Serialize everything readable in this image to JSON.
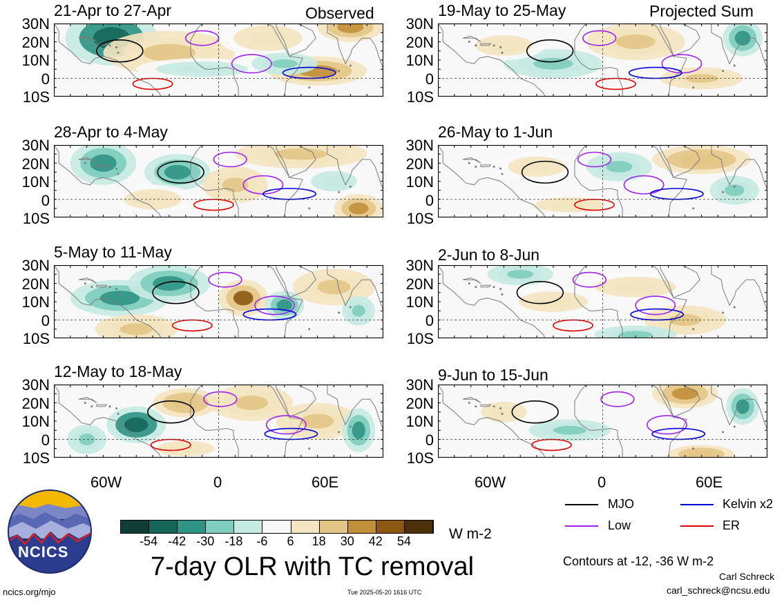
{
  "panels": [
    {
      "title": "21-Apr to 27-Apr",
      "corner": "Observed"
    },
    {
      "title": "28-Apr to 4-May",
      "corner": ""
    },
    {
      "title": "5-May to 11-May",
      "corner": ""
    },
    {
      "title": "12-May to 18-May",
      "corner": ""
    },
    {
      "title": "19-May to 25-May",
      "corner": "Projected Sum"
    },
    {
      "title": "26-May to 1-Jun",
      "corner": ""
    },
    {
      "title": "2-Jun to 8-Jun",
      "corner": ""
    },
    {
      "title": "9-Jun to 15-Jun",
      "corner": ""
    }
  ],
  "lat_labels": [
    "30N",
    "20N",
    "10N",
    "0",
    "10S"
  ],
  "lon_labels": [
    "60W",
    "0",
    "60E"
  ],
  "colorbar": {
    "ticks": [
      "-54",
      "-42",
      "-30",
      "-18",
      "-6",
      "6",
      "18",
      "30",
      "42",
      "54"
    ],
    "colors": [
      "#0e3e35",
      "#16675a",
      "#2f9484",
      "#7ecdbe",
      "#c5eae2",
      "#f8f8f8",
      "#f4e4c0",
      "#e3c586",
      "#c18f3a",
      "#8d5811",
      "#4e3008"
    ],
    "units": "W m-2"
  },
  "legend": {
    "items": [
      {
        "label": "MJO",
        "color": "#000000"
      },
      {
        "label": "Kelvin x2",
        "color": "#0000dd"
      },
      {
        "label": "Low",
        "color": "#a020f0"
      },
      {
        "label": "ER",
        "color": "#e00000"
      }
    ],
    "contours_note": "Contours at -12, -36 W m-2"
  },
  "main_title": "7-day OLR with TC removal",
  "logo_text": "NCICS",
  "footer": {
    "left": "ncics.org/mjo",
    "center": "Tue 2025-05-20 1616 UTC",
    "author": "Carl Schreck",
    "email": "carl_schreck@ncsu.edu"
  },
  "map_fields": [
    [
      {
        "lon": -65,
        "lat": 22,
        "v": -50,
        "rx": 28,
        "ry": 15
      },
      {
        "lon": -30,
        "lat": 14,
        "v": 20,
        "rx": 40,
        "ry": 12
      },
      {
        "lon": 30,
        "lat": 22,
        "v": 18,
        "rx": 30,
        "ry": 10
      },
      {
        "lon": 60,
        "lat": 4,
        "v": 42,
        "rx": 30,
        "ry": 8
      },
      {
        "lon": 80,
        "lat": 28,
        "v": 35,
        "rx": 20,
        "ry": 8
      },
      {
        "lon": -10,
        "lat": 5,
        "v": -10,
        "rx": 40,
        "ry": 6
      },
      {
        "lon": 40,
        "lat": 8,
        "v": -18,
        "rx": 20,
        "ry": 6
      }
    ],
    [
      {
        "lon": -70,
        "lat": 20,
        "v": -30,
        "rx": 20,
        "ry": 12
      },
      {
        "lon": -25,
        "lat": 15,
        "v": -30,
        "rx": 20,
        "ry": 10
      },
      {
        "lon": 10,
        "lat": 8,
        "v": 25,
        "rx": 20,
        "ry": 10
      },
      {
        "lon": 50,
        "lat": 25,
        "v": 20,
        "rx": 40,
        "ry": 8
      },
      {
        "lon": 85,
        "lat": -5,
        "v": 42,
        "rx": 15,
        "ry": 8
      },
      {
        "lon": -40,
        "lat": 0,
        "v": 15,
        "rx": 25,
        "ry": 8
      },
      {
        "lon": 70,
        "lat": 10,
        "v": -10,
        "rx": 20,
        "ry": 8
      }
    ],
    [
      {
        "lon": -60,
        "lat": 12,
        "v": -30,
        "rx": 30,
        "ry": 10
      },
      {
        "lon": -30,
        "lat": 20,
        "v": -30,
        "rx": 25,
        "ry": 10
      },
      {
        "lon": 15,
        "lat": 12,
        "v": 45,
        "rx": 15,
        "ry": 10
      },
      {
        "lon": 40,
        "lat": 8,
        "v": -40,
        "rx": 12,
        "ry": 8
      },
      {
        "lon": -50,
        "lat": -5,
        "v": 20,
        "rx": 25,
        "ry": 8
      },
      {
        "lon": 70,
        "lat": 18,
        "v": 20,
        "rx": 25,
        "ry": 10
      },
      {
        "lon": 85,
        "lat": 5,
        "v": -20,
        "rx": 10,
        "ry": 8
      }
    ],
    [
      {
        "lon": -50,
        "lat": 8,
        "v": -50,
        "rx": 18,
        "ry": 10
      },
      {
        "lon": -80,
        "lat": 0,
        "v": -20,
        "rx": 12,
        "ry": 8
      },
      {
        "lon": -20,
        "lat": 20,
        "v": 30,
        "rx": 20,
        "ry": 8
      },
      {
        "lon": 20,
        "lat": 20,
        "v": 25,
        "rx": 25,
        "ry": 10
      },
      {
        "lon": 60,
        "lat": 10,
        "v": 20,
        "rx": 25,
        "ry": 10
      },
      {
        "lon": 85,
        "lat": 5,
        "v": -30,
        "rx": 10,
        "ry": 12
      },
      {
        "lon": -20,
        "lat": -5,
        "v": 18,
        "rx": 25,
        "ry": 6
      }
    ],
    [
      {
        "lon": -30,
        "lat": 8,
        "v": -18,
        "rx": 30,
        "ry": 8
      },
      {
        "lon": 85,
        "lat": 22,
        "v": -40,
        "rx": 12,
        "ry": 10
      },
      {
        "lon": -60,
        "lat": 18,
        "v": 15,
        "rx": 25,
        "ry": 8
      },
      {
        "lon": 20,
        "lat": 20,
        "v": 20,
        "rx": 30,
        "ry": 10
      },
      {
        "lon": 60,
        "lat": 0,
        "v": 25,
        "rx": 25,
        "ry": 6
      }
    ],
    [
      {
        "lon": -40,
        "lat": 18,
        "v": 18,
        "rx": 25,
        "ry": 8
      },
      {
        "lon": 10,
        "lat": 18,
        "v": -18,
        "rx": 20,
        "ry": 8
      },
      {
        "lon": 60,
        "lat": 22,
        "v": 30,
        "rx": 30,
        "ry": 8
      },
      {
        "lon": -20,
        "lat": -3,
        "v": 18,
        "rx": 30,
        "ry": 6
      },
      {
        "lon": 80,
        "lat": 5,
        "v": -18,
        "rx": 15,
        "ry": 8
      }
    ],
    [
      {
        "lon": -50,
        "lat": 25,
        "v": -18,
        "rx": 20,
        "ry": 6
      },
      {
        "lon": -30,
        "lat": 10,
        "v": 18,
        "rx": 30,
        "ry": 8
      },
      {
        "lon": 20,
        "lat": 18,
        "v": 18,
        "rx": 35,
        "ry": 8
      },
      {
        "lon": 50,
        "lat": 0,
        "v": 20,
        "rx": 25,
        "ry": 8
      },
      {
        "lon": 20,
        "lat": -8,
        "v": -18,
        "rx": 25,
        "ry": 5
      }
    ],
    [
      {
        "lon": 50,
        "lat": 25,
        "v": 40,
        "rx": 20,
        "ry": 8
      },
      {
        "lon": -20,
        "lat": 5,
        "v": -25,
        "rx": 25,
        "ry": 6
      },
      {
        "lon": 85,
        "lat": 18,
        "v": -30,
        "rx": 10,
        "ry": 10
      },
      {
        "lon": -60,
        "lat": 15,
        "v": 18,
        "rx": 20,
        "ry": 8
      },
      {
        "lon": 60,
        "lat": -8,
        "v": 30,
        "rx": 20,
        "ry": 5
      }
    ]
  ]
}
